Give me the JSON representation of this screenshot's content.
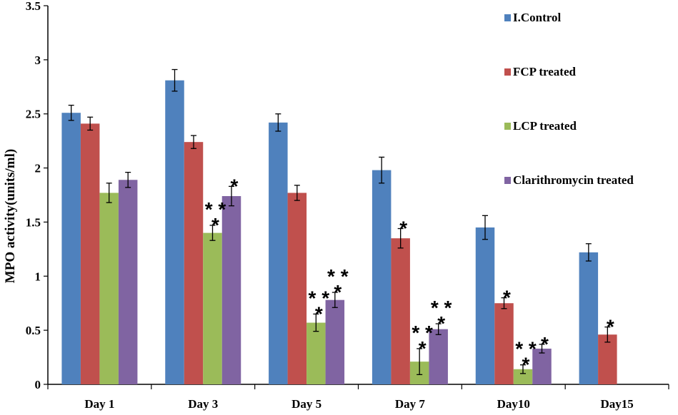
{
  "chart_data": {
    "type": "bar",
    "title": "",
    "xlabel": "",
    "ylabel": "MPO activity(units/ml)",
    "ylim": [
      0,
      3.5
    ],
    "yticks": [
      "0",
      "0.5",
      "1",
      "1.5",
      "2",
      "2.5",
      "3",
      "3.5"
    ],
    "grid": false,
    "legend_position": "top-right",
    "categories": [
      "Day 1",
      "Day 3",
      "Day 5",
      "Day 7",
      "Day10",
      "Day15"
    ],
    "series": [
      {
        "name": "I.Control",
        "color": "#4F81BD",
        "values": [
          2.51,
          2.81,
          2.42,
          1.98,
          1.45,
          1.22
        ],
        "errors": [
          0.07,
          0.1,
          0.08,
          0.12,
          0.11,
          0.08
        ],
        "markers": [
          "",
          "",
          "",
          "",
          "",
          ""
        ]
      },
      {
        "name": "FCP treated",
        "color": "#C0504D",
        "values": [
          2.41,
          2.24,
          1.77,
          1.35,
          0.75,
          0.46
        ],
        "errors": [
          0.06,
          0.06,
          0.07,
          0.09,
          0.05,
          0.07
        ],
        "markers": [
          "",
          "",
          "",
          "*",
          "*",
          "*"
        ]
      },
      {
        "name": "LCP treated",
        "color": "#9BBB59",
        "values": [
          1.77,
          1.4,
          0.57,
          0.21,
          0.14,
          null
        ],
        "errors": [
          0.09,
          0.07,
          0.08,
          0.12,
          0.04,
          null
        ],
        "markers": [
          "",
          "**|*",
          "**|*",
          "**|*",
          "**|*",
          ""
        ]
      },
      {
        "name": "Clarithromycin treated",
        "color": "#8064A2",
        "values": [
          1.89,
          1.74,
          0.78,
          0.51,
          0.33,
          null
        ],
        "errors": [
          0.07,
          0.09,
          0.07,
          0.05,
          0.04,
          null
        ],
        "markers": [
          "",
          "*",
          "**|*",
          "**|*",
          "*",
          ""
        ]
      }
    ]
  }
}
